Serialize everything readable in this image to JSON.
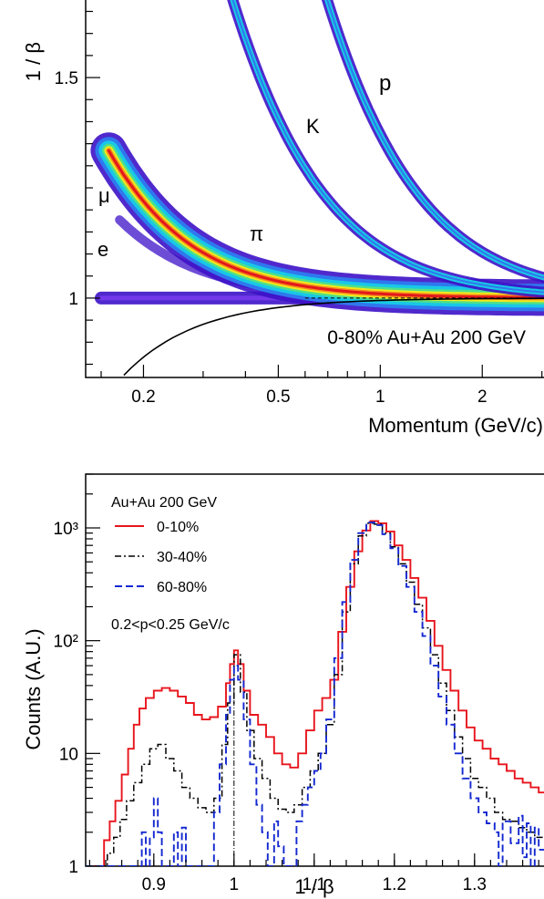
{
  "chart_data": [
    {
      "type": "heatmap",
      "xlabel": "Momentum (GeV/c)",
      "ylabel": "1 / β",
      "x_scale": "log",
      "xlim": [
        0.135,
        3.1
      ],
      "ylim": [
        0.82,
        1.68
      ],
      "x_ticks": [
        {
          "value": 0.2,
          "label": "0.2"
        },
        {
          "value": 0.5,
          "label": "0.5"
        },
        {
          "value": 1,
          "label": "1"
        },
        {
          "value": 2,
          "label": "2"
        }
      ],
      "y_ticks": [
        {
          "value": 1.0,
          "label": "1"
        },
        {
          "value": 1.5,
          "label": "1.5"
        }
      ],
      "annotation": "0-80% Au+Au 200 GeV",
      "bands": [
        {
          "label": "e",
          "mass": 0.000511
        },
        {
          "label": "μ",
          "mass": 0.1057
        },
        {
          "label": "π",
          "mass": 0.1396
        },
        {
          "label": "K",
          "mass": 0.4937
        },
        {
          "label": "p",
          "mass": 0.9383
        }
      ],
      "colors": {
        "low": "#3d12c8",
        "mid": "#18c8e6",
        "high": "#f2e81c",
        "peak": "#e2181c",
        "curve": "#000000"
      }
    },
    {
      "type": "line",
      "xlabel": "1 / β",
      "ylabel": "Counts (A.U.)",
      "y_scale": "log",
      "xlim": [
        0.815,
        1.39
      ],
      "ylim": [
        1,
        3000
      ],
      "x_ticks": [
        {
          "value": 0.9,
          "label": "0.9"
        },
        {
          "value": 1.0,
          "label": "1"
        },
        {
          "value": 1.1,
          "label": "1.1"
        },
        {
          "value": 1.2,
          "label": "1.2"
        },
        {
          "value": 1.3,
          "label": "1.3"
        }
      ],
      "y_ticks": [
        {
          "value": 1,
          "label": "1"
        },
        {
          "value": 10,
          "label": "10"
        },
        {
          "value": 100,
          "label": "10²"
        },
        {
          "value": 1000,
          "label": "10³"
        }
      ],
      "legend_title": "Au+Au 200 GeV",
      "annotation": "0.2<p<0.25 GeV/c",
      "reference_line_x": 1.0,
      "legend_position": "top-left",
      "series": [
        {
          "name": "0-10%",
          "color": "#e8141c",
          "style": "solid",
          "points": [
            [
              0.815,
              1
            ],
            [
              0.83,
              1
            ],
            [
              0.838,
              1.7
            ],
            [
              0.845,
              2.5
            ],
            [
              0.852,
              3.8
            ],
            [
              0.86,
              6.5
            ],
            [
              0.868,
              11
            ],
            [
              0.875,
              18
            ],
            [
              0.882,
              25
            ],
            [
              0.89,
              31
            ],
            [
              0.9,
              36
            ],
            [
              0.91,
              38
            ],
            [
              0.92,
              36
            ],
            [
              0.93,
              32
            ],
            [
              0.94,
              28
            ],
            [
              0.95,
              22
            ],
            [
              0.96,
              20
            ],
            [
              0.97,
              21
            ],
            [
              0.98,
              26
            ],
            [
              0.99,
              42
            ],
            [
              0.995,
              62
            ],
            [
              1.0,
              82
            ],
            [
              1.005,
              62
            ],
            [
              1.012,
              36
            ],
            [
              1.02,
              22
            ],
            [
              1.03,
              18
            ],
            [
              1.04,
              14
            ],
            [
              1.05,
              10
            ],
            [
              1.06,
              8
            ],
            [
              1.07,
              7.5
            ],
            [
              1.08,
              10
            ],
            [
              1.09,
              16
            ],
            [
              1.1,
              24
            ],
            [
              1.11,
              31
            ],
            [
              1.12,
              45
            ],
            [
              1.13,
              120
            ],
            [
              1.14,
              300
            ],
            [
              1.15,
              620
            ],
            [
              1.16,
              950
            ],
            [
              1.17,
              1150
            ],
            [
              1.18,
              1100
            ],
            [
              1.19,
              930
            ],
            [
              1.2,
              700
            ],
            [
              1.21,
              520
            ],
            [
              1.22,
              360
            ],
            [
              1.23,
              240
            ],
            [
              1.24,
              150
            ],
            [
              1.25,
              90
            ],
            [
              1.26,
              55
            ],
            [
              1.27,
              36
            ],
            [
              1.28,
              24
            ],
            [
              1.29,
              17
            ],
            [
              1.3,
              13
            ],
            [
              1.31,
              11
            ],
            [
              1.32,
              9
            ],
            [
              1.33,
              8
            ],
            [
              1.34,
              7
            ],
            [
              1.35,
              6
            ],
            [
              1.36,
              5.5
            ],
            [
              1.37,
              5
            ],
            [
              1.38,
              4.5
            ],
            [
              1.39,
              4.2
            ]
          ]
        },
        {
          "name": "30-40%",
          "color": "#000000",
          "style": "dashdot",
          "points": [
            [
              0.815,
              1
            ],
            [
              0.835,
              1
            ],
            [
              0.842,
              1.3
            ],
            [
              0.85,
              1.8
            ],
            [
              0.858,
              2.6
            ],
            [
              0.866,
              3.8
            ],
            [
              0.875,
              5.5
            ],
            [
              0.885,
              8
            ],
            [
              0.895,
              11
            ],
            [
              0.905,
              12
            ],
            [
              0.915,
              9
            ],
            [
              0.925,
              7
            ],
            [
              0.935,
              5
            ],
            [
              0.945,
              4
            ],
            [
              0.955,
              3.3
            ],
            [
              0.965,
              3
            ],
            [
              0.975,
              4
            ],
            [
              0.985,
              12
            ],
            [
              0.992,
              28
            ],
            [
              1.0,
              75
            ],
            [
              1.008,
              35
            ],
            [
              1.016,
              16
            ],
            [
              1.025,
              9
            ],
            [
              1.035,
              6
            ],
            [
              1.045,
              4
            ],
            [
              1.055,
              3.2
            ],
            [
              1.065,
              3
            ],
            [
              1.075,
              3.5
            ],
            [
              1.085,
              5
            ],
            [
              1.095,
              7
            ],
            [
              1.105,
              10
            ],
            [
              1.115,
              18
            ],
            [
              1.125,
              50
            ],
            [
              1.135,
              180
            ],
            [
              1.145,
              480
            ],
            [
              1.155,
              850
            ],
            [
              1.165,
              1100
            ],
            [
              1.175,
              1080
            ],
            [
              1.185,
              900
            ],
            [
              1.195,
              680
            ],
            [
              1.205,
              480
            ],
            [
              1.215,
              330
            ],
            [
              1.225,
              210
            ],
            [
              1.235,
              130
            ],
            [
              1.245,
              75
            ],
            [
              1.255,
              42
            ],
            [
              1.265,
              24
            ],
            [
              1.275,
              14
            ],
            [
              1.285,
              9
            ],
            [
              1.295,
              6
            ],
            [
              1.305,
              5
            ],
            [
              1.315,
              4
            ],
            [
              1.325,
              3
            ],
            [
              1.335,
              2.6
            ],
            [
              1.345,
              2.5
            ],
            [
              1.355,
              2.2
            ],
            [
              1.365,
              2
            ],
            [
              1.375,
              1.8
            ],
            [
              1.39,
              1.5
            ]
          ]
        },
        {
          "name": "60-80%",
          "color": "#1428d0",
          "style": "dashed",
          "points": [
            [
              0.815,
              1
            ],
            [
              0.88,
              1
            ],
            [
              0.885,
              2
            ],
            [
              0.89,
              1
            ],
            [
              0.895,
              1.8
            ],
            [
              0.9,
              4
            ],
            [
              0.905,
              2
            ],
            [
              0.91,
              1
            ],
            [
              0.92,
              1
            ],
            [
              0.925,
              2
            ],
            [
              0.93,
              1
            ],
            [
              0.935,
              2.2
            ],
            [
              0.94,
              1
            ],
            [
              0.97,
              1
            ],
            [
              0.975,
              3
            ],
            [
              0.982,
              8
            ],
            [
              0.99,
              22
            ],
            [
              0.995,
              45
            ],
            [
              1.0,
              60
            ],
            [
              1.005,
              45
            ],
            [
              1.012,
              20
            ],
            [
              1.02,
              8
            ],
            [
              1.028,
              3.5
            ],
            [
              1.035,
              2
            ],
            [
              1.042,
              1
            ],
            [
              1.05,
              2.5
            ],
            [
              1.055,
              1.5
            ],
            [
              1.062,
              1
            ],
            [
              1.07,
              1
            ],
            [
              1.078,
              2.5
            ],
            [
              1.085,
              3.5
            ],
            [
              1.092,
              5
            ],
            [
              1.1,
              7
            ],
            [
              1.108,
              10
            ],
            [
              1.115,
              20
            ],
            [
              1.125,
              70
            ],
            [
              1.135,
              220
            ],
            [
              1.145,
              520
            ],
            [
              1.155,
              900
            ],
            [
              1.165,
              1120
            ],
            [
              1.175,
              1060
            ],
            [
              1.185,
              880
            ],
            [
              1.195,
              660
            ],
            [
              1.205,
              460
            ],
            [
              1.215,
              300
            ],
            [
              1.225,
              180
            ],
            [
              1.235,
              110
            ],
            [
              1.245,
              60
            ],
            [
              1.255,
              32
            ],
            [
              1.265,
              18
            ],
            [
              1.275,
              10
            ],
            [
              1.285,
              6
            ],
            [
              1.295,
              4
            ],
            [
              1.305,
              3
            ],
            [
              1.315,
              2.4
            ],
            [
              1.325,
              2
            ],
            [
              1.33,
              1
            ],
            [
              1.335,
              2.5
            ],
            [
              1.345,
              1.6
            ],
            [
              1.355,
              2.8
            ],
            [
              1.36,
              1.2
            ],
            [
              1.365,
              2.4
            ],
            [
              1.37,
              1
            ],
            [
              1.375,
              2.2
            ],
            [
              1.38,
              1.4
            ],
            [
              1.39,
              1.6
            ]
          ]
        }
      ]
    }
  ]
}
